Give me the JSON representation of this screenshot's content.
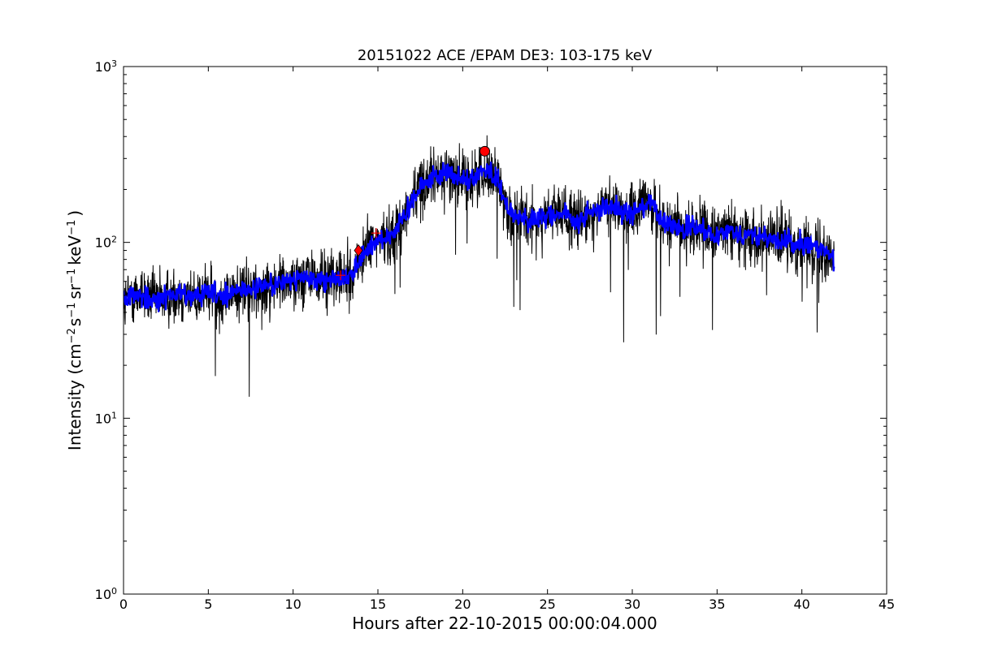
{
  "chart_data": {
    "type": "line",
    "title": "20151022 ACE /EPAM DE3: 103-175 keV",
    "xlabel": "Hours after 22-10-2015 00:00:04.000",
    "ylabel": {
      "prefix": "Intensity (cm",
      "exp1": "−2",
      "mid1": "s",
      "exp2": "−1",
      "mid2": "sr",
      "exp3": "−1",
      "mid3": "keV",
      "exp4": "−1",
      "suffix": ")"
    },
    "xlim": [
      0,
      45
    ],
    "ylim": [
      1,
      1000
    ],
    "yscale": "log",
    "grid": false,
    "x_ticks": [
      0,
      5,
      10,
      15,
      20,
      25,
      30,
      35,
      40,
      45
    ],
    "x_tick_labels": [
      "0",
      "5",
      "10",
      "15",
      "20",
      "25",
      "30",
      "35",
      "40",
      "45"
    ],
    "y_ticks": [
      {
        "value": 1,
        "base": "10",
        "exp": "0"
      },
      {
        "value": 10,
        "base": "10",
        "exp": "1"
      },
      {
        "value": 100,
        "base": "10",
        "exp": "2"
      },
      {
        "value": 1000,
        "base": "10",
        "exp": "3"
      }
    ],
    "colors": {
      "raw": "#000000",
      "smoothed": "#0000ff",
      "markers": "#ff0000"
    },
    "series": [
      {
        "kind": "raw",
        "x": [
          0,
          0.5,
          1,
          1.5,
          2,
          2.5,
          3,
          3.5,
          4,
          4.5,
          5,
          5.5,
          6,
          6.5,
          7,
          7.5,
          8,
          8.5,
          9,
          9.5,
          10,
          10.5,
          11,
          11.5,
          12,
          12.5,
          13,
          13.5,
          14,
          14.5,
          15,
          15.5,
          16,
          16.5,
          17,
          17.5,
          18,
          18.5,
          19,
          19.5,
          20,
          20.5,
          21,
          21.5,
          22,
          22.5,
          23,
          23.5,
          24,
          24.5,
          25,
          25.5,
          26,
          26.5,
          27,
          27.5,
          28,
          28.5,
          29,
          29.5,
          30,
          30.5,
          31,
          31.5,
          32,
          32.5,
          33,
          33.5,
          34,
          34.5,
          35,
          35.5,
          36,
          36.5,
          37,
          37.5,
          38,
          38.5,
          39,
          39.5,
          40,
          40.5,
          41,
          41.5,
          41.9
        ],
        "y": [
          45,
          50,
          52,
          48,
          47,
          49,
          50,
          51,
          48,
          50,
          52,
          50,
          48,
          52,
          54,
          53,
          55,
          57,
          58,
          60,
          61,
          63,
          62,
          63,
          62,
          63,
          62,
          66,
          82,
          95,
          103,
          108,
          115,
          135,
          175,
          210,
          228,
          238,
          250,
          240,
          232,
          225,
          255,
          250,
          240,
          165,
          145,
          138,
          130,
          135,
          140,
          142,
          150,
          128,
          135,
          145,
          155,
          160,
          158,
          152,
          150,
          153,
          172,
          138,
          128,
          122,
          118,
          120,
          118,
          115,
          112,
          118,
          115,
          112,
          110,
          108,
          105,
          103,
          100,
          98,
          97,
          95,
          93,
          90,
          80
        ]
      },
      {
        "kind": "smoothed",
        "x": [
          0,
          0.5,
          1,
          1.5,
          2,
          2.5,
          3,
          3.5,
          4,
          4.5,
          5,
          5.5,
          6,
          6.5,
          7,
          7.5,
          8,
          8.5,
          9,
          9.5,
          10,
          10.5,
          11,
          11.5,
          12,
          12.5,
          13,
          13.5,
          14,
          14.5,
          15,
          15.5,
          16,
          16.5,
          17,
          17.5,
          18,
          18.5,
          19,
          19.5,
          20,
          20.5,
          21,
          21.5,
          22,
          22.5,
          23,
          23.5,
          24,
          24.5,
          25,
          25.5,
          26,
          26.5,
          27,
          27.5,
          28,
          28.5,
          29,
          29.5,
          30,
          30.5,
          31,
          31.5,
          32,
          32.5,
          33,
          33.5,
          34,
          34.5,
          35,
          35.5,
          36,
          36.5,
          37,
          37.5,
          38,
          38.5,
          39,
          39.5,
          40,
          40.5,
          41,
          41.5,
          41.9
        ],
        "y": [
          45,
          50,
          52,
          48,
          47,
          49,
          50,
          51,
          48,
          50,
          52,
          50,
          48,
          52,
          54,
          53,
          55,
          57,
          58,
          60,
          61,
          63,
          62,
          63,
          62,
          63,
          62,
          66,
          82,
          95,
          103,
          108,
          115,
          135,
          175,
          210,
          228,
          238,
          250,
          240,
          232,
          225,
          255,
          250,
          240,
          165,
          145,
          138,
          130,
          135,
          140,
          142,
          150,
          128,
          135,
          145,
          155,
          160,
          158,
          152,
          150,
          153,
          172,
          138,
          128,
          122,
          118,
          120,
          118,
          115,
          112,
          118,
          115,
          112,
          110,
          108,
          105,
          103,
          100,
          98,
          97,
          95,
          93,
          90,
          80
        ]
      }
    ],
    "markers": [
      {
        "shape": "plus",
        "x": 12.8,
        "y": 65
      },
      {
        "shape": "diamond",
        "x": 13.85,
        "y": 90
      },
      {
        "shape": "plus",
        "x": 14.9,
        "y": 113
      },
      {
        "shape": "circle",
        "x": 21.3,
        "y": 330
      }
    ]
  }
}
